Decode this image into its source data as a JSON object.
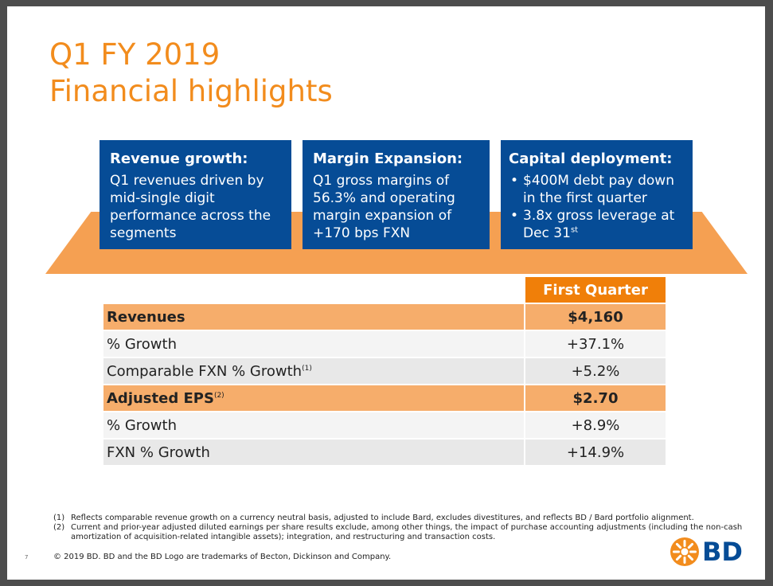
{
  "title": {
    "line1": "Q1 FY 2019",
    "line2": "Financial highlights"
  },
  "cards": [
    {
      "head": "Revenue growth:",
      "body": "Q1 revenues driven by mid-single digit performance across the segments"
    },
    {
      "head": "Margin Expansion:",
      "body": "Q1 gross margins of 56.3% and operating margin expansion of +170 bps FXN"
    },
    {
      "head": "Capital deployment:",
      "bullet1": "$400M debt pay down in the first quarter",
      "bullet2": "3.8x gross leverage at Dec 31",
      "bullet2_sup": "st"
    }
  ],
  "table": {
    "column_header": "First Quarter",
    "rows": [
      {
        "label": "Revenues",
        "value": "$4,160"
      },
      {
        "label": "% Growth",
        "value": "+37.1%"
      },
      {
        "label": "Comparable FXN % Growth",
        "sup": "(1)",
        "value": "+5.2%"
      },
      {
        "label": "Adjusted EPS",
        "sup": "(2)",
        "value": "$2.70"
      },
      {
        "label": "% Growth",
        "value": "+8.9%"
      },
      {
        "label": "FXN % Growth",
        "value": "+14.9%"
      }
    ]
  },
  "footnotes": [
    {
      "num": "(1)",
      "text": "Reflects comparable revenue growth on a currency neutral basis, adjusted to include Bard, excludes divestitures, and reflects BD / Bard portfolio alignment."
    },
    {
      "num": "(2)",
      "text": "Current and prior-year adjusted diluted earnings per share results exclude, among other things, the impact of purchase accounting adjustments (including the non-cash amortization of acquisition-related intangible assets); integration, and restructuring and transaction costs."
    }
  ],
  "copyright": "© 2019 BD. BD and the BD Logo are trademarks of Becton, Dickinson and Company.",
  "page_number": "7",
  "logo": {
    "text": "BD",
    "icon": "bd-starburst-icon"
  },
  "colors": {
    "orange": "#f28c1d",
    "navy": "#064c96",
    "row_highlight": "#f6ad6b"
  }
}
